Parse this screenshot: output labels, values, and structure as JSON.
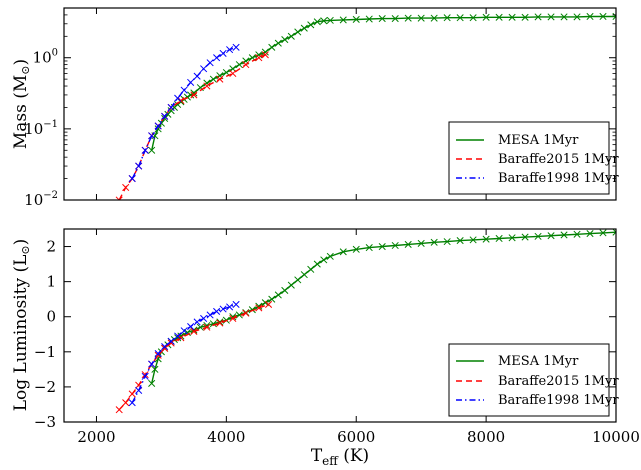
{
  "chart_data": [
    {
      "type": "line",
      "panel": "mass",
      "ylabel": "Mass (M",
      "ylabel_sub": "⊙",
      "ylabel_close": ")",
      "yscale": "log",
      "xlim": [
        1500,
        10000
      ],
      "ylim": [
        0.01,
        5
      ],
      "ytick_values": [
        0.01,
        0.1,
        1
      ],
      "ytick_bases": [
        "10",
        "10",
        "10"
      ],
      "ytick_exps": [
        "−2",
        "−1",
        "0"
      ],
      "grid": false,
      "legend_position": "lower-right",
      "series": [
        {
          "name": "MESA 1Myr",
          "color": "#008000",
          "line": "solid",
          "marker": "x",
          "x": [
            2850,
            2900,
            2950,
            3000,
            3050,
            3100,
            3150,
            3200,
            3250,
            3300,
            3350,
            3400,
            3450,
            3500,
            3600,
            3700,
            3800,
            3900,
            4000,
            4100,
            4200,
            4300,
            4400,
            4500,
            4600,
            4700,
            4800,
            4900,
            5000,
            5100,
            5200,
            5300,
            5400,
            5500,
            5600,
            5800,
            6000,
            6200,
            6400,
            6600,
            6800,
            7000,
            7200,
            7400,
            7600,
            7800,
            8000,
            8200,
            8400,
            8600,
            8800,
            9000,
            9200,
            9400,
            9600,
            9800,
            10000
          ],
          "y": [
            0.05,
            0.08,
            0.1,
            0.12,
            0.14,
            0.16,
            0.18,
            0.2,
            0.22,
            0.24,
            0.26,
            0.28,
            0.3,
            0.32,
            0.38,
            0.44,
            0.5,
            0.56,
            0.62,
            0.7,
            0.8,
            0.9,
            1.0,
            1.1,
            1.2,
            1.4,
            1.6,
            1.8,
            2.0,
            2.3,
            2.6,
            2.9,
            3.2,
            3.3,
            3.35,
            3.4,
            3.45,
            3.5,
            3.55,
            3.55,
            3.6,
            3.6,
            3.6,
            3.65,
            3.65,
            3.65,
            3.7,
            3.7,
            3.7,
            3.7,
            3.75,
            3.75,
            3.75,
            3.75,
            3.8,
            3.8,
            3.8
          ]
        },
        {
          "name": "Baraffe2015 1Myr",
          "color": "#ff0000",
          "line": "dashed",
          "marker": "x",
          "x": [
            2350,
            2450,
            2550,
            2650,
            2750,
            2850,
            2950,
            3050,
            3150,
            3300,
            3500,
            3700,
            3900,
            4100,
            4300,
            4500,
            4600
          ],
          "y": [
            0.01,
            0.015,
            0.02,
            0.03,
            0.05,
            0.08,
            0.11,
            0.15,
            0.2,
            0.25,
            0.3,
            0.4,
            0.5,
            0.6,
            0.8,
            1.0,
            1.1
          ]
        },
        {
          "name": "Baraffe1998 1Myr",
          "color": "#0000ff",
          "line": "dashdot",
          "marker": "x",
          "x": [
            2550,
            2650,
            2750,
            2850,
            2950,
            3050,
            3150,
            3250,
            3350,
            3450,
            3550,
            3650,
            3750,
            3850,
            3950,
            4050,
            4150
          ],
          "y": [
            0.02,
            0.03,
            0.05,
            0.08,
            0.11,
            0.15,
            0.2,
            0.27,
            0.35,
            0.45,
            0.55,
            0.7,
            0.85,
            1.0,
            1.15,
            1.3,
            1.4
          ]
        }
      ]
    },
    {
      "type": "line",
      "panel": "luminosity",
      "xlabel": "T",
      "xlabel_sub": "eff",
      "xlabel_close": " (K)",
      "ylabel": "Log Luminosity (L",
      "ylabel_sub": "⊙",
      "ylabel_close": ")",
      "xlim": [
        1500,
        10000
      ],
      "ylim": [
        -3,
        2.5
      ],
      "xticks": [
        2000,
        4000,
        6000,
        8000,
        10000
      ],
      "xtick_labels": [
        "2000",
        "4000",
        "6000",
        "8000",
        "10000"
      ],
      "yticks": [
        -3,
        -2,
        -1,
        0,
        1,
        2
      ],
      "ytick_labels": [
        "−3",
        "−2",
        "−1",
        "0",
        "1",
        "2"
      ],
      "grid": false,
      "legend_position": "lower-right",
      "series": [
        {
          "name": "MESA 1Myr",
          "color": "#008000",
          "line": "solid",
          "marker": "x",
          "x": [
            2850,
            2900,
            2950,
            3000,
            3050,
            3100,
            3150,
            3200,
            3250,
            3300,
            3400,
            3500,
            3600,
            3700,
            3800,
            3900,
            4000,
            4100,
            4200,
            4300,
            4400,
            4500,
            4600,
            4700,
            4800,
            4900,
            5000,
            5100,
            5200,
            5300,
            5400,
            5500,
            5600,
            5800,
            6000,
            6200,
            6400,
            6600,
            6800,
            7000,
            7200,
            7400,
            7600,
            7800,
            8000,
            8200,
            8400,
            8600,
            8800,
            9000,
            9200,
            9400,
            9600,
            9800,
            10000
          ],
          "y": [
            -1.9,
            -1.5,
            -1.2,
            -1.0,
            -0.9,
            -0.8,
            -0.7,
            -0.65,
            -0.6,
            -0.55,
            -0.45,
            -0.38,
            -0.3,
            -0.25,
            -0.2,
            -0.15,
            -0.1,
            0.0,
            0.05,
            0.12,
            0.2,
            0.3,
            0.4,
            0.5,
            0.62,
            0.75,
            0.9,
            1.05,
            1.2,
            1.35,
            1.5,
            1.62,
            1.72,
            1.85,
            1.92,
            1.97,
            2.0,
            2.03,
            2.06,
            2.09,
            2.12,
            2.14,
            2.17,
            2.19,
            2.21,
            2.23,
            2.25,
            2.27,
            2.29,
            2.31,
            2.33,
            2.35,
            2.37,
            2.39,
            2.41
          ]
        },
        {
          "name": "Baraffe2015 1Myr",
          "color": "#ff0000",
          "line": "dashed",
          "marker": "x",
          "x": [
            2350,
            2450,
            2550,
            2650,
            2750,
            2850,
            2950,
            3050,
            3150,
            3300,
            3500,
            3700,
            3900,
            4100,
            4300,
            4500,
            4650
          ],
          "y": [
            -2.65,
            -2.45,
            -2.2,
            -1.95,
            -1.65,
            -1.35,
            -1.1,
            -0.9,
            -0.75,
            -0.6,
            -0.42,
            -0.3,
            -0.18,
            -0.05,
            0.1,
            0.25,
            0.35
          ]
        },
        {
          "name": "Baraffe1998 1Myr",
          "color": "#0000ff",
          "line": "dashdot",
          "marker": "x",
          "x": [
            2550,
            2650,
            2750,
            2850,
            2950,
            3050,
            3150,
            3250,
            3350,
            3450,
            3550,
            3650,
            3750,
            3850,
            3950,
            4050,
            4150
          ],
          "y": [
            -2.45,
            -2.1,
            -1.7,
            -1.35,
            -1.05,
            -0.85,
            -0.7,
            -0.55,
            -0.4,
            -0.28,
            -0.15,
            -0.05,
            0.05,
            0.15,
            0.22,
            0.28,
            0.35
          ]
        }
      ]
    }
  ]
}
